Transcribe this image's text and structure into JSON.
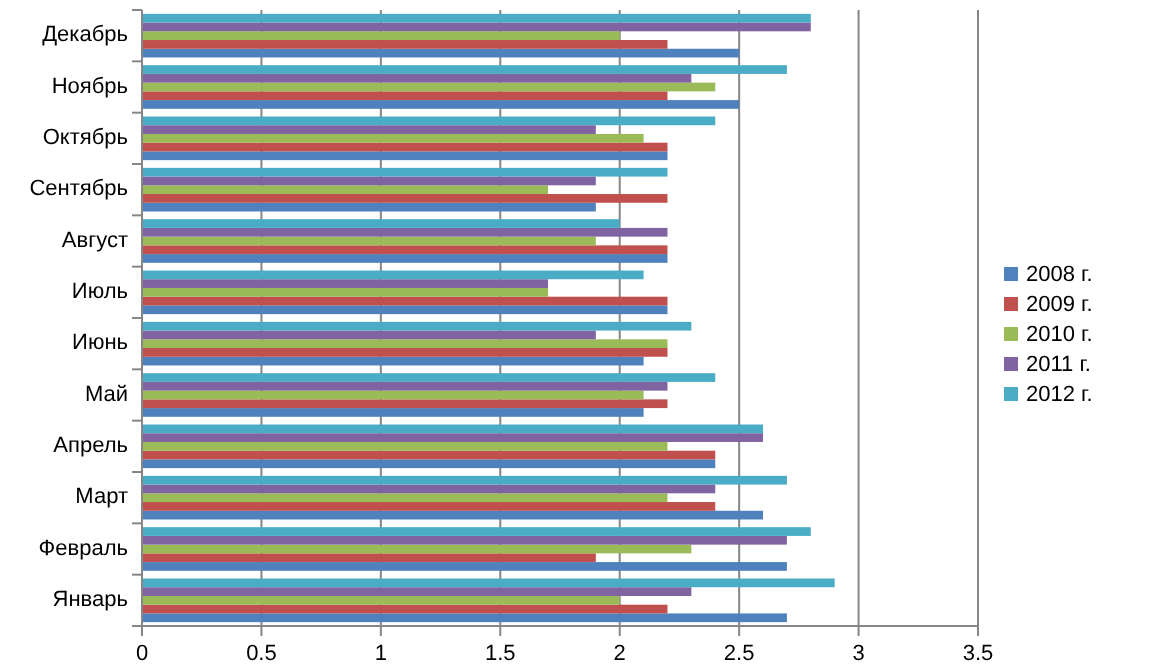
{
  "chart_data": {
    "type": "bar",
    "orientation": "horizontal",
    "categories": [
      "Декабрь",
      "Ноябрь",
      "Октябрь",
      "Сентябрь",
      "Август",
      "Июль",
      "Июнь",
      "Май",
      "Апрель",
      "Март",
      "Февраль",
      "Январь"
    ],
    "series": [
      {
        "name": "2008 г.",
        "color": "#4f81bd",
        "values": [
          2.5,
          2.5,
          2.2,
          1.9,
          2.2,
          2.2,
          2.1,
          2.1,
          2.4,
          2.6,
          2.7,
          2.7
        ]
      },
      {
        "name": "2009 г.",
        "color": "#c0504d",
        "values": [
          2.2,
          2.2,
          2.2,
          2.2,
          2.2,
          2.2,
          2.2,
          2.2,
          2.4,
          2.4,
          1.9,
          2.2
        ]
      },
      {
        "name": "2010 г.",
        "color": "#9bbb59",
        "values": [
          2.0,
          2.4,
          2.1,
          1.7,
          1.9,
          1.7,
          2.2,
          2.1,
          2.2,
          2.2,
          2.3,
          2.0
        ]
      },
      {
        "name": "2011 г.",
        "color": "#8064a2",
        "values": [
          2.8,
          2.3,
          1.9,
          1.9,
          2.2,
          1.7,
          1.9,
          2.2,
          2.6,
          2.4,
          2.7,
          2.3
        ]
      },
      {
        "name": "2012 г.",
        "color": "#4bacc6",
        "values": [
          2.8,
          2.7,
          2.4,
          2.2,
          2.0,
          2.1,
          2.3,
          2.4,
          2.6,
          2.7,
          2.8,
          2.9
        ]
      }
    ],
    "xlim": [
      0,
      3.5
    ],
    "xticks": [
      0,
      0.5,
      1,
      1.5,
      2,
      2.5,
      3,
      3.5
    ],
    "grid": "x",
    "legend": "right"
  }
}
